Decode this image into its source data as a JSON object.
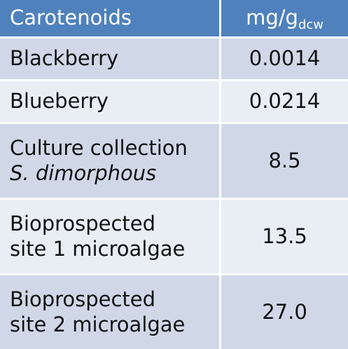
{
  "chart_data": {
    "type": "table",
    "columns": [
      {
        "label": "Carotenoids"
      },
      {
        "label": "mg/g",
        "subscript": "dcw"
      }
    ],
    "rows": [
      {
        "lines": [
          {
            "text": "Blackberry"
          }
        ],
        "value": "0.0014"
      },
      {
        "lines": [
          {
            "text": "Blueberry"
          }
        ],
        "value": "0.0214"
      },
      {
        "lines": [
          {
            "text": "Culture collection"
          },
          {
            "text": "S. dimorphous",
            "italic": true
          }
        ],
        "value": "8.5"
      },
      {
        "lines": [
          {
            "text": "Bioprospected"
          },
          {
            "text": "site 1 microalgae"
          }
        ],
        "value": "13.5"
      },
      {
        "lines": [
          {
            "text": "Bioprospected"
          },
          {
            "text": "site 2 microalgae"
          }
        ],
        "value": "27.0"
      }
    ]
  },
  "colors": {
    "header_bg": "#4f81bd",
    "header_text": "#ffffff",
    "row_odd_bg": "#d0d8e8",
    "row_even_bg": "#e9edf4"
  }
}
